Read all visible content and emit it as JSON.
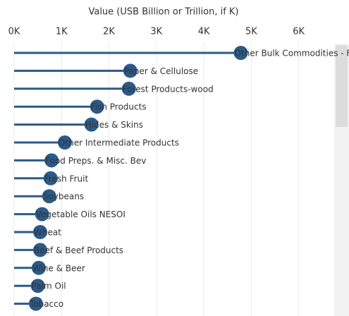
{
  "chart_data": {
    "type": "lollipop",
    "title": "Value (USB Billion or Trillion, if K)",
    "color": "#2b5a8a",
    "categories": [
      "Other Bulk Commodities - Fibers",
      "Paper & Cellulose",
      "Forest Products-wood",
      "Fish Products",
      "Hides & Skins",
      "Other Intermediate Products",
      "Food Preps. & Misc. Bev",
      "Fresh Fruit",
      "Soybeans",
      "Vegetable Oils NESOI",
      "Wheat",
      "Beef & Beef Products",
      "Wine & Beer",
      "Palm Oil",
      "Tobacco"
    ],
    "values": [
      4780,
      2450,
      2420,
      1750,
      1630,
      1070,
      790,
      770,
      740,
      590,
      550,
      550,
      520,
      500,
      460
    ],
    "xlim": [
      0,
      6600
    ],
    "xticks": [
      {
        "value": 0,
        "label": "0K"
      },
      {
        "value": 1000,
        "label": "1K"
      },
      {
        "value": 2000,
        "label": "2K"
      },
      {
        "value": 3000,
        "label": "3K"
      },
      {
        "value": 4000,
        "label": "4K"
      },
      {
        "value": 5000,
        "label": "5K"
      },
      {
        "value": 6000,
        "label": "6K"
      }
    ],
    "grid": true
  }
}
